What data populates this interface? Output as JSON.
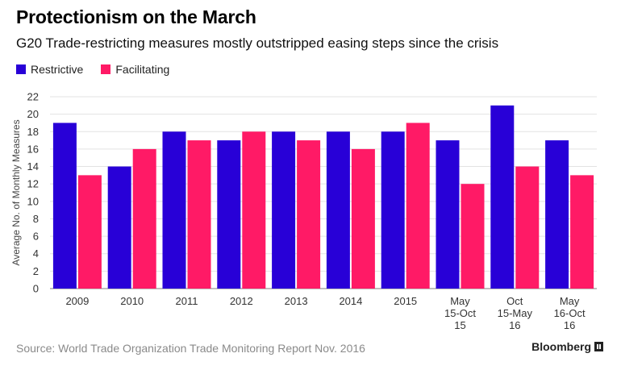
{
  "header": {
    "title": "Protectionism on the March",
    "subtitle": "G20 Trade-restricting measures mostly outstripped easing steps since the crisis"
  },
  "footer": {
    "source": "Source: World Trade Organization Trade Monitoring Report Nov. 2016",
    "brand": "Bloomberg"
  },
  "chart_data": {
    "type": "bar",
    "title": "Protectionism on the March",
    "subtitle": "G20 Trade-restricting measures mostly outstripped easing steps since the crisis",
    "xlabel": "",
    "ylabel": "Average No. of Monthly Measures",
    "ylim": [
      0,
      22
    ],
    "yticks": [
      0,
      2,
      4,
      6,
      8,
      10,
      12,
      14,
      16,
      18,
      20,
      22
    ],
    "grid": true,
    "legend_position": "top-left",
    "categories": [
      [
        "2009"
      ],
      [
        "2010"
      ],
      [
        "2011"
      ],
      [
        "2012"
      ],
      [
        "2013"
      ],
      [
        "2014"
      ],
      [
        "2015"
      ],
      [
        "May",
        "15-Oct",
        "15"
      ],
      [
        "Oct",
        "15-May",
        "16"
      ],
      [
        "May",
        "16-Oct",
        "16"
      ]
    ],
    "series": [
      {
        "name": "Restrictive",
        "color": "#2800d7",
        "values": [
          19,
          14,
          18,
          17,
          18,
          18,
          18,
          17,
          21,
          17
        ]
      },
      {
        "name": "Facilitating",
        "color": "#ff1a66",
        "values": [
          13,
          16,
          17,
          18,
          17,
          16,
          19,
          12,
          14,
          13
        ]
      }
    ]
  }
}
